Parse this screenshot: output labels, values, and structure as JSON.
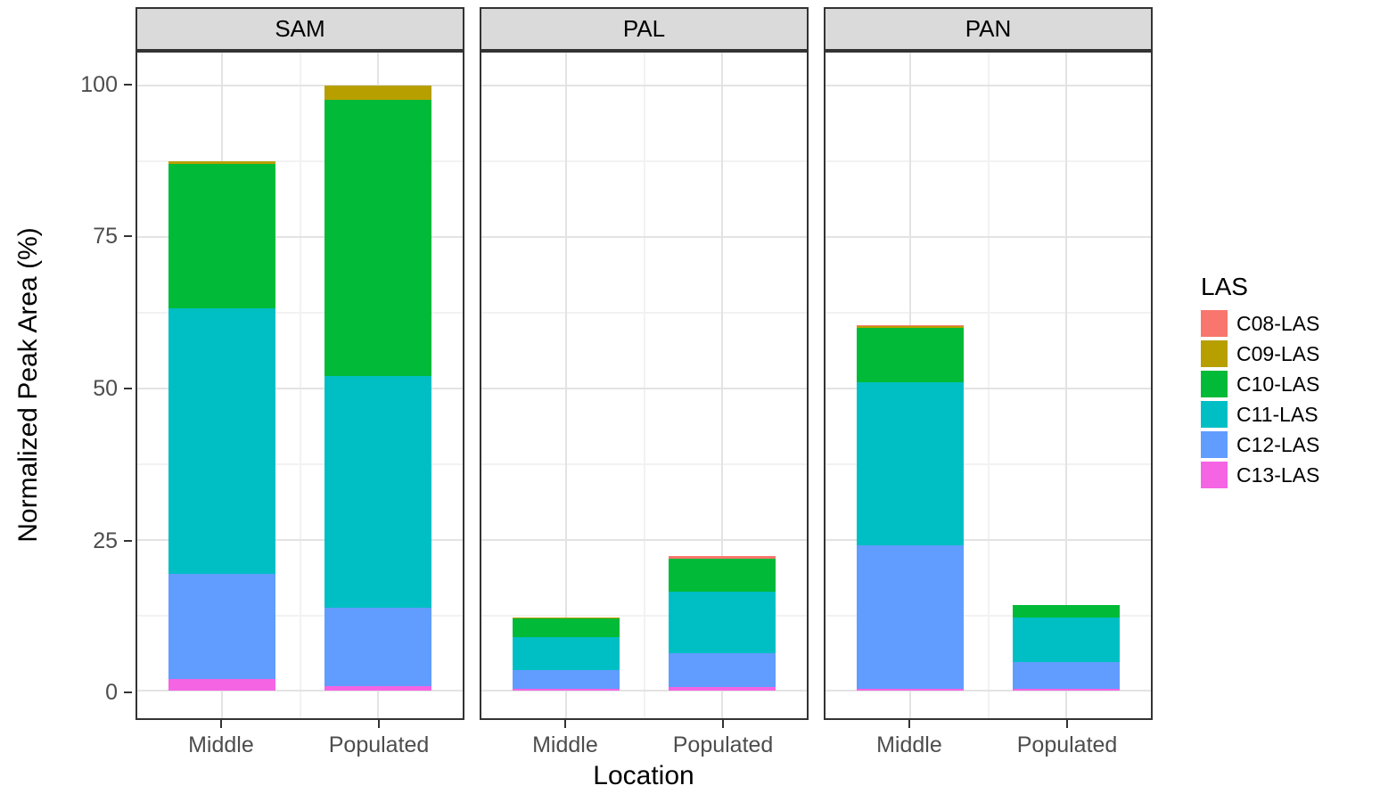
{
  "figure": {
    "xlabel": "Location",
    "ylabel": "Normalized Peak Area (%)"
  },
  "legend": {
    "title": "LAS",
    "entries": [
      {
        "label": "C08-LAS",
        "color": "#F8766D"
      },
      {
        "label": "C09-LAS",
        "color": "#B79F00"
      },
      {
        "label": "C10-LAS",
        "color": "#00BA38"
      },
      {
        "label": "C11-LAS",
        "color": "#00BFC4"
      },
      {
        "label": "C12-LAS",
        "color": "#619CFF"
      },
      {
        "label": "C13-LAS",
        "color": "#F564E3"
      }
    ]
  },
  "chart_data": {
    "type": "bar",
    "stacked": true,
    "title": "",
    "xlabel": "Location",
    "ylabel": "Normalized Peak Area (%)",
    "ylim": [
      0,
      100
    ],
    "yticks": [
      0,
      25,
      50,
      75,
      100
    ],
    "yticks_minor": [
      12.5,
      37.5,
      62.5,
      87.5
    ],
    "categories": [
      "Middle",
      "Populated"
    ],
    "stack_order_bottom_to_top": [
      "C13-LAS",
      "C12-LAS",
      "C11-LAS",
      "C10-LAS",
      "C09-LAS",
      "C08-LAS"
    ],
    "series_colors": {
      "C08-LAS": "#F8766D",
      "C09-LAS": "#B79F00",
      "C10-LAS": "#00BA38",
      "C11-LAS": "#00BFC4",
      "C12-LAS": "#619CFF",
      "C13-LAS": "#F564E3"
    },
    "legend_title": "LAS",
    "legend_position": "right",
    "grid": true,
    "facets": [
      {
        "label": "SAM",
        "bars": [
          {
            "category": "Middle",
            "total": 87.6,
            "segments": {
              "C13-LAS": 2.0,
              "C12-LAS": 17.4,
              "C11-LAS": 43.8,
              "C10-LAS": 23.9,
              "C09-LAS": 0.5
            }
          },
          {
            "category": "Populated",
            "total": 100.0,
            "segments": {
              "C13-LAS": 0.8,
              "C12-LAS": 12.9,
              "C11-LAS": 38.3,
              "C10-LAS": 45.7,
              "C09-LAS": 2.3
            }
          }
        ]
      },
      {
        "label": "PAL",
        "bars": [
          {
            "category": "Middle",
            "total": 12.2,
            "segments": {
              "C13-LAS": 0.4,
              "C12-LAS": 3.1,
              "C11-LAS": 5.4,
              "C10-LAS": 3.1,
              "C09-LAS": 0.2
            }
          },
          {
            "category": "Populated",
            "total": 22.3,
            "segments": {
              "C13-LAS": 0.6,
              "C12-LAS": 5.6,
              "C11-LAS": 10.2,
              "C10-LAS": 5.4,
              "C08-LAS": 0.5
            }
          }
        ]
      },
      {
        "label": "PAN",
        "bars": [
          {
            "category": "Middle",
            "total": 60.5,
            "segments": {
              "C13-LAS": 0.4,
              "C12-LAS": 23.6,
              "C11-LAS": 27.0,
              "C10-LAS": 9.0,
              "C09-LAS": 0.3,
              "C08-LAS": 0.2
            }
          },
          {
            "category": "Populated",
            "total": 14.2,
            "segments": {
              "C13-LAS": 0.3,
              "C12-LAS": 4.4,
              "C11-LAS": 7.4,
              "C10-LAS": 2.1
            }
          }
        ]
      }
    ]
  }
}
